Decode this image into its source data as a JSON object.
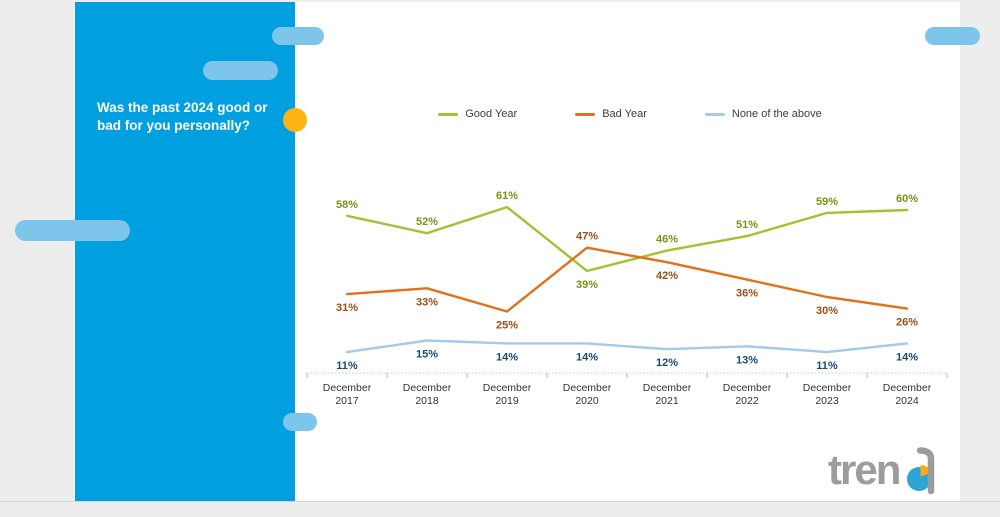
{
  "page": {
    "background": "#ededed",
    "card_background": "#ffffff"
  },
  "panel": {
    "question_line1": "Was the past 2024 good or",
    "question_line2": "bad for you personally?",
    "background": "#00a0e0",
    "pill_color": "#7ec5eb",
    "accent_dot_color": "#fcb415"
  },
  "legend": {
    "items": [
      {
        "label": "Good Year",
        "color": "#a0c332"
      },
      {
        "label": "Bad Year",
        "color": "#e2711d"
      },
      {
        "label": "None of the above",
        "color": "#a6c9e8"
      }
    ]
  },
  "chart_data": {
    "type": "line",
    "title": "Was the past 2024 good or bad for you personally?",
    "categories": [
      "December 2017",
      "December 2018",
      "December 2019",
      "December 2020",
      "December 2021",
      "December 2022",
      "December 2023",
      "December 2024"
    ],
    "series": [
      {
        "name": "Good Year",
        "color": "#a0c332",
        "label_color": "#7d9017",
        "values": [
          58,
          52,
          61,
          39,
          46,
          51,
          59,
          60
        ],
        "label_positions": [
          "above",
          "above",
          "above",
          "below",
          "above",
          "above",
          "above",
          "above"
        ]
      },
      {
        "name": "Bad Year",
        "color": "#e2711d",
        "label_color": "#9c4f16",
        "values": [
          31,
          33,
          25,
          47,
          42,
          36,
          30,
          26
        ],
        "label_positions": [
          "below",
          "below",
          "below",
          "above",
          "below",
          "below",
          "below",
          "below"
        ]
      },
      {
        "name": "None of the above",
        "color": "#a6c9e8",
        "label_color": "#1b4a6e",
        "values": [
          11,
          15,
          14,
          14,
          12,
          13,
          11,
          14
        ],
        "label_positions": [
          "below",
          "below",
          "below",
          "below",
          "below",
          "below",
          "below",
          "below"
        ]
      }
    ],
    "value_suffix": "%",
    "ylim": [
      0,
      70
    ],
    "grid": false,
    "legend_position": "top",
    "axis_label_color": "#333333",
    "axis_line_color": "#c9c9c9"
  },
  "logo": {
    "text_prefix": "tren",
    "text_full": "trend",
    "gray": "#9c9c9c",
    "pie_blue": "#2ea3d6",
    "pie_yellow": "#f8ab17"
  }
}
